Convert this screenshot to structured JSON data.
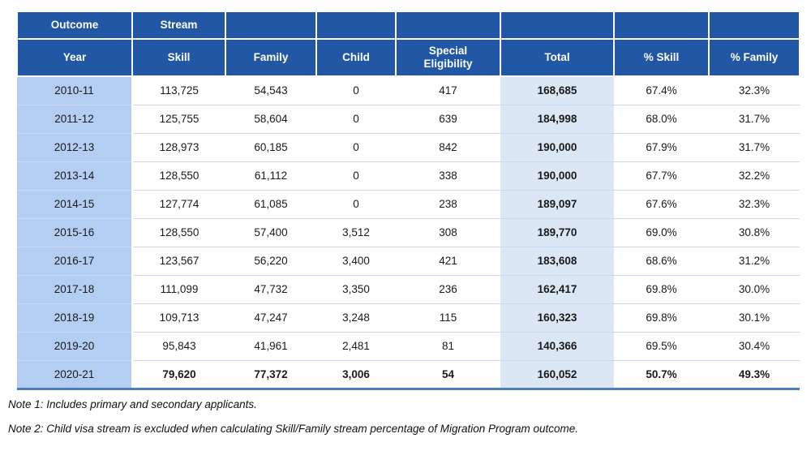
{
  "table": {
    "header": {
      "outcome": "Outcome",
      "stream": "Stream",
      "columns": [
        "Year",
        "Skill",
        "Family",
        "Child",
        "Special Eligibility",
        "Total",
        "% Skill",
        "% Family"
      ]
    },
    "rows": [
      {
        "year": "2010-11",
        "skill": "113,725",
        "family": "54,543",
        "child": "0",
        "special": "417",
        "total": "168,685",
        "pct_skill": "67.4%",
        "pct_family": "32.3%"
      },
      {
        "year": "2011-12",
        "skill": "125,755",
        "family": "58,604",
        "child": "0",
        "special": "639",
        "total": "184,998",
        "pct_skill": "68.0%",
        "pct_family": "31.7%"
      },
      {
        "year": "2012-13",
        "skill": "128,973",
        "family": "60,185",
        "child": "0",
        "special": "842",
        "total": "190,000",
        "pct_skill": "67.9%",
        "pct_family": "31.7%"
      },
      {
        "year": "2013-14",
        "skill": "128,550",
        "family": "61,112",
        "child": "0",
        "special": "338",
        "total": "190,000",
        "pct_skill": "67.7%",
        "pct_family": "32.2%"
      },
      {
        "year": "2014-15",
        "skill": "127,774",
        "family": "61,085",
        "child": "0",
        "special": "238",
        "total": "189,097",
        "pct_skill": "67.6%",
        "pct_family": "32.3%"
      },
      {
        "year": "2015-16",
        "skill": "128,550",
        "family": "57,400",
        "child": "3,512",
        "special": "308",
        "total": "189,770",
        "pct_skill": "69.0%",
        "pct_family": "30.8%"
      },
      {
        "year": "2016-17",
        "skill": "123,567",
        "family": "56,220",
        "child": "3,400",
        "special": "421",
        "total": "183,608",
        "pct_skill": "68.6%",
        "pct_family": "31.2%"
      },
      {
        "year": "2017-18",
        "skill": "111,099",
        "family": "47,732",
        "child": "3,350",
        "special": "236",
        "total": "162,417",
        "pct_skill": "69.8%",
        "pct_family": "30.0%"
      },
      {
        "year": "2018-19",
        "skill": "109,713",
        "family": "47,247",
        "child": "3,248",
        "special": "115",
        "total": "160,323",
        "pct_skill": "69.8%",
        "pct_family": "30.1%"
      },
      {
        "year": "2019-20",
        "skill": "95,843",
        "family": "41,961",
        "child": "2,481",
        "special": "81",
        "total": "140,366",
        "pct_skill": "69.5%",
        "pct_family": "30.4%"
      },
      {
        "year": "2020-21",
        "skill": "79,620",
        "family": "77,372",
        "child": "3,006",
        "special": "54",
        "total": "160,052",
        "pct_skill": "50.7%",
        "pct_family": "49.3%"
      }
    ]
  },
  "notes": [
    "Note 1: Includes primary and secondary applicants.",
    "Note 2: Child visa stream is excluded when calculating Skill/Family stream percentage of Migration Program outcome."
  ],
  "colors": {
    "header_bg": "#2157A5",
    "year_col_bg": "#B4CDF2",
    "total_col_bg": "#DCE7F6",
    "row_line": "#C9DAF0",
    "bottom_border": "#4A7EBF"
  }
}
